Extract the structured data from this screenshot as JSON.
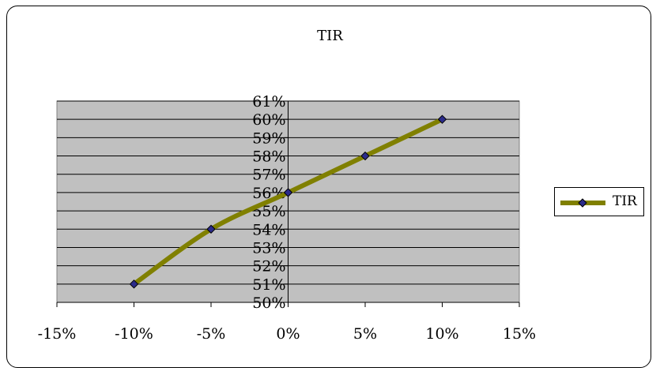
{
  "chart_data": {
    "type": "line",
    "title": "TIR",
    "xlabel": "",
    "ylabel": "",
    "xlim": [
      -0.15,
      0.15
    ],
    "ylim": [
      0.5,
      0.61
    ],
    "x_ticks": [
      "-15%",
      "-10%",
      "-5%",
      "0%",
      "5%",
      "10%",
      "15%"
    ],
    "y_ticks": [
      "50%",
      "51%",
      "52%",
      "53%",
      "54%",
      "55%",
      "56%",
      "57%",
      "58%",
      "59%",
      "60%",
      "61%"
    ],
    "grid": "horizontal",
    "legend_position": "right",
    "series": [
      {
        "name": "TIR",
        "x": [
          -0.1,
          -0.05,
          0.0,
          0.05,
          0.1
        ],
        "y": [
          0.51,
          0.54,
          0.56,
          0.58,
          0.6
        ],
        "line_color": "#808000",
        "marker": "diamond",
        "marker_fill": "#2b2b8a"
      }
    ],
    "plot_background": "#c0c0c0"
  }
}
